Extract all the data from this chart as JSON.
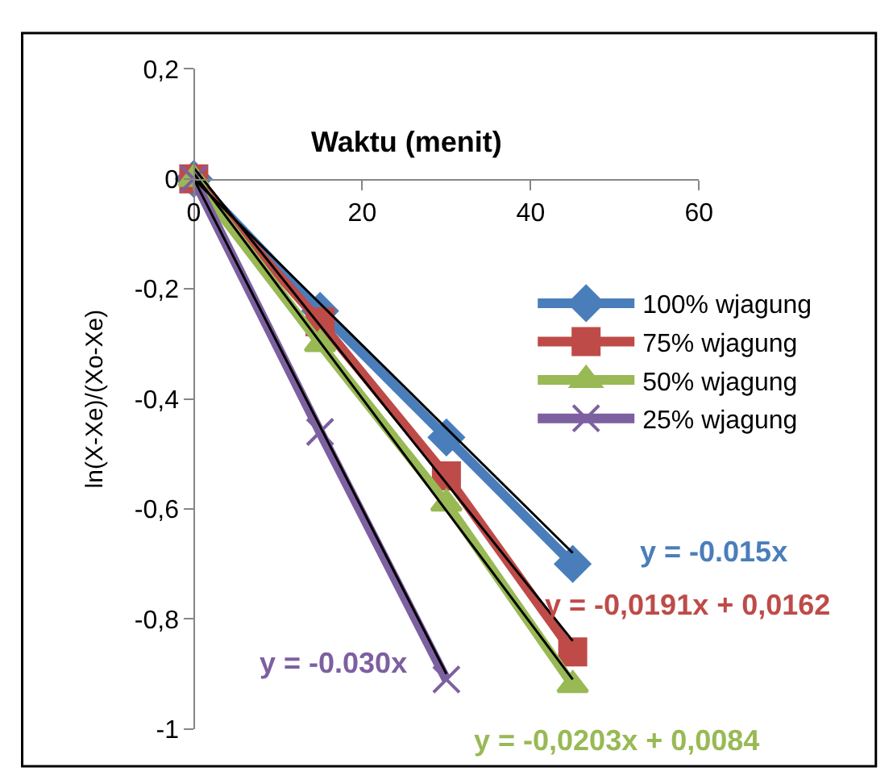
{
  "chart_data": {
    "type": "line",
    "xlabel": "Waktu (menit)",
    "ylabel": "ln(X-Xe)/(Xo-Xe)",
    "x": [
      0,
      15,
      30,
      45
    ],
    "xlim": [
      0,
      60
    ],
    "xticks": [
      0,
      20,
      40,
      60
    ],
    "ylim": [
      -1,
      0.2
    ],
    "yticks": [
      {
        "value": 0.2,
        "label": "0,2"
      },
      0,
      {
        "value": -0.2,
        "label": "-0,2"
      },
      {
        "value": -0.4,
        "label": "-0,4"
      },
      {
        "value": -0.6,
        "label": "-0,6"
      },
      {
        "value": -0.8,
        "label": "-0,8"
      },
      -1
    ],
    "legend": "right",
    "series": [
      {
        "name": "100% wjagung",
        "color": "#4a7ebb",
        "marker": "diamond",
        "values": [
          0,
          -0.24,
          -0.47,
          -0.7
        ]
      },
      {
        "name": "75% wjagung",
        "color": "#be4b48",
        "marker": "square",
        "values": [
          0,
          -0.26,
          -0.54,
          -0.86
        ]
      },
      {
        "name": "50% wjagung",
        "color": "#98b954",
        "marker": "triangle",
        "values": [
          0,
          -0.3,
          -0.59,
          -0.92
        ]
      },
      {
        "name": "25% wjagung",
        "color": "#7d60a0",
        "marker": "cross",
        "values": [
          0,
          -0.46,
          -0.91,
          null
        ]
      },
      {
        "color": "#000000",
        "marker": "none",
        "x": [
          0,
          45
        ],
        "values": [
          0,
          -0.68
        ]
      },
      {
        "color": "#000000",
        "marker": "none",
        "x": [
          0,
          45
        ],
        "values": [
          0.02,
          -0.84
        ]
      },
      {
        "color": "#000000",
        "marker": "none",
        "x": [
          0,
          45
        ],
        "values": [
          0.01,
          -0.91
        ]
      },
      {
        "color": "#000000",
        "marker": "none",
        "x": [
          0,
          30
        ],
        "values": [
          0,
          -0.9
        ]
      }
    ],
    "annotations": [
      "y = -0.015x",
      "y = -0,0191x + 0,0162",
      "y = -0,0203x + 0,0084",
      "y = -0.030x"
    ]
  }
}
